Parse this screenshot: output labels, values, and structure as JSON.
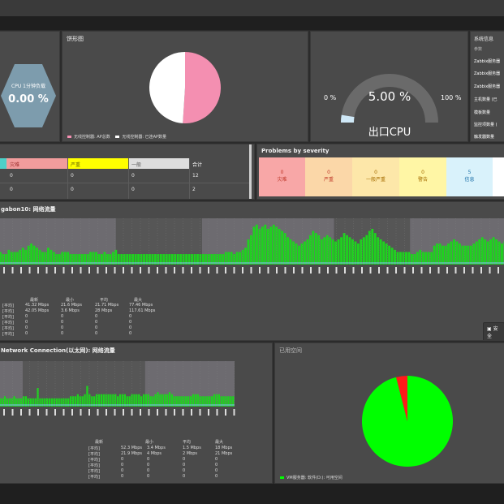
{
  "header": {},
  "cpu_hex": {
    "title": "CPU 1分钟负载",
    "value": "0.00 %",
    "color": "#7d9cad"
  },
  "pie1": {
    "title": "饼形图",
    "legend": [
      {
        "label": "无线控制器: AP总数",
        "color": "#f48fb1"
      },
      {
        "label": "无线控制器: 已连AP数量",
        "color": "#ffffff"
      }
    ],
    "chart_data": {
      "type": "pie",
      "values": [
        51,
        49
      ],
      "labels": [
        "无线控制器: AP总数",
        "无线控制器: 已连AP数量"
      ],
      "colors": [
        "#f48fb1",
        "#ffffff"
      ]
    }
  },
  "gauge": {
    "title": "出口CPU",
    "value": "5.00 %",
    "min_label": "0 %",
    "max_label": "100 %",
    "chart_data": {
      "type": "gauge",
      "value": 5,
      "min": 0,
      "max": 100
    }
  },
  "sysinfo": {
    "title": "系统信息",
    "header": "参数",
    "rows": [
      "Zabbix服务器",
      "Zabbix服务器",
      "Zabbix服务器",
      "主机数量 (已",
      "模板数量",
      "监控项数量 (",
      "触发器数量"
    ]
  },
  "status_table": {
    "headers": [
      "",
      "灾难",
      "严重",
      "一般",
      "合计"
    ],
    "header_colors": [
      "#4dd0c8",
      "#f19c9c",
      "#ffff00",
      "#dddddd",
      "#4a4a4a"
    ],
    "rows": [
      [
        "0",
        "0",
        "0",
        "0",
        "12"
      ],
      [
        "0",
        "0",
        "0",
        "0",
        "2"
      ]
    ]
  },
  "problems": {
    "title": "Problems by severity",
    "items": [
      {
        "count": "0",
        "label": "灾难",
        "bg": "#f8a7a7",
        "fg": "#c0392b"
      },
      {
        "count": "0",
        "label": "严重",
        "bg": "#fbd7a8",
        "fg": "#c0392b"
      },
      {
        "count": "0",
        "label": "一般严重",
        "bg": "#fde7a9",
        "fg": "#a56c00"
      },
      {
        "count": "0",
        "label": "警告",
        "bg": "#fff6a5",
        "fg": "#a56c00"
      },
      {
        "count": "5",
        "label": "信息",
        "bg": "#d9f2fb",
        "fg": "#1b6fa8"
      },
      {
        "count": "",
        "label": "",
        "bg": "#ffffff",
        "fg": "#333333"
      }
    ]
  },
  "traffic1": {
    "title": "gabon10: 网络流量",
    "legend_header": [
      "最新",
      "最小",
      "平均",
      "最大"
    ],
    "legend_rows": [
      [
        "[平均]",
        "41.32 Mbps",
        "21.6 Mbps",
        "21.71 Mbps",
        "77.46 Mbps"
      ],
      [
        "[平均]",
        "42.05 Mbps",
        "3.6 Mbps",
        "28 Mbps",
        "117.61 Mbps"
      ],
      [
        "[平均]",
        "0",
        "0",
        "0",
        "0"
      ],
      [
        "[平均]",
        "0",
        "0",
        "0",
        "0"
      ],
      [
        "[平均]",
        "0",
        "0",
        "0",
        "0"
      ],
      [
        "[平均]",
        "0",
        "0",
        "0",
        "0"
      ]
    ],
    "button": "安全",
    "chart_data": {
      "type": "area",
      "series": [
        {
          "name": "in",
          "values": [
            6,
            5,
            5,
            7,
            6,
            6,
            6,
            7,
            8,
            7,
            9,
            10,
            9,
            8,
            7,
            6,
            6,
            8,
            7,
            6,
            5,
            5,
            6,
            6,
            6,
            5,
            5,
            5,
            5,
            5,
            5,
            5,
            6,
            6,
            6,
            5,
            5,
            6,
            5,
            5,
            6,
            7,
            5,
            5,
            5,
            5,
            5,
            5,
            5,
            5,
            5,
            5,
            5,
            5,
            5,
            5,
            5,
            5,
            5,
            5,
            5,
            5,
            5,
            5,
            5,
            5,
            5,
            5,
            5,
            5,
            5,
            5,
            5,
            5,
            5,
            5,
            5,
            5,
            5,
            5,
            6,
            6,
            6,
            5,
            6,
            6,
            7,
            8,
            12,
            14,
            18,
            19,
            17,
            18,
            19,
            17,
            18,
            19,
            18,
            17,
            16,
            15,
            13,
            12,
            11,
            10,
            9,
            10,
            11,
            12,
            14,
            16,
            15,
            14,
            12,
            13,
            14,
            13,
            12,
            11,
            12,
            13,
            15,
            14,
            13,
            12,
            11,
            10,
            12,
            13,
            14,
            16,
            17,
            15,
            13,
            12,
            11,
            10,
            9,
            8,
            7,
            6,
            6,
            6,
            6,
            6,
            5,
            5,
            6,
            7,
            6,
            6,
            6,
            6,
            9,
            10,
            10,
            9,
            9,
            10,
            11,
            12,
            11,
            10,
            9,
            9,
            9,
            9,
            10,
            11,
            12,
            13,
            12,
            11,
            12,
            13,
            12,
            11,
            10,
            11
          ]
        }
      ],
      "ylim": [
        0,
        22
      ]
    }
  },
  "traffic2": {
    "title": "Network Connection(以太网): 网络流量",
    "legend_header": [
      "最新",
      "最小",
      "平均",
      "最大"
    ],
    "legend_rows": [
      [
        "[平均]",
        "52.3 Mbps",
        "3.4 Mbps",
        "1.5 Mbps",
        "18 Mbps"
      ],
      [
        "[平均]",
        "21.9 Mbps",
        "4 Mbps",
        "2 Mbps",
        "21 Mbps"
      ],
      [
        "[平均]",
        "0",
        "0",
        "0",
        "0"
      ],
      [
        "[平均]",
        "0",
        "0",
        "0",
        "0"
      ],
      [
        "[平均]",
        "0",
        "0",
        "0",
        "0"
      ],
      [
        "[平均]",
        "0",
        "0",
        "0",
        "0"
      ]
    ],
    "chart_data": {
      "type": "area",
      "series": [
        {
          "name": "in",
          "values": [
            4,
            4,
            5,
            4,
            4,
            4,
            5,
            4,
            4,
            4,
            5,
            5,
            4,
            4,
            4,
            4,
            9,
            4,
            4,
            4,
            4,
            4,
            4,
            4,
            4,
            4,
            4,
            4,
            4,
            4,
            5,
            5,
            5,
            6,
            5,
            5,
            6,
            10,
            6,
            5,
            5,
            6,
            6,
            6,
            6,
            6,
            6,
            6,
            6,
            6,
            5,
            6,
            6,
            6,
            5,
            5,
            6,
            6,
            6,
            6,
            5,
            6,
            6,
            6,
            5,
            5,
            6,
            7,
            6,
            6,
            6,
            6,
            7,
            6,
            5,
            5,
            5,
            5,
            5,
            5,
            5,
            5,
            6,
            6,
            6,
            5,
            5,
            5,
            5,
            5,
            5,
            6,
            6,
            6,
            5,
            5,
            5,
            5,
            5,
            5
          ]
        }
      ],
      "ylim": [
        0,
        22
      ]
    }
  },
  "pie2": {
    "title": "已用空间",
    "legend": [
      {
        "label": "VM服务器: 软件(D:): 可用空间",
        "color": "#00ff00"
      }
    ],
    "chart_data": {
      "type": "pie",
      "values": [
        96,
        4
      ],
      "labels": [
        "可用空间",
        "已用空间"
      ],
      "colors": [
        "#00ff00",
        "#ff1a1a"
      ]
    }
  }
}
